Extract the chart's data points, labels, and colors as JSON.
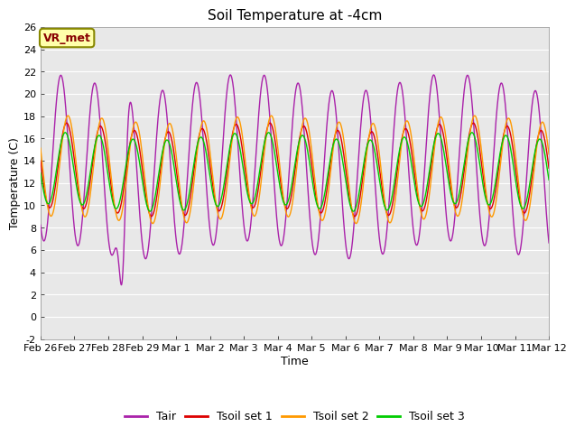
{
  "title": "Soil Temperature at -4cm",
  "xlabel": "Time",
  "ylabel": "Temperature (C)",
  "ylim": [
    -2,
    26
  ],
  "xlim_start": 0,
  "xlim_end": 15.0,
  "xtick_positions": [
    0,
    1,
    2,
    3,
    4,
    5,
    6,
    7,
    8,
    9,
    10,
    11,
    12,
    13,
    14,
    15
  ],
  "xtick_labels": [
    "Feb 26",
    "Feb 27",
    "Feb 28",
    "Feb 29",
    "Mar 1",
    "Mar 2",
    "Mar 3",
    "Mar 4",
    "Mar 5",
    "Mar 6",
    "Mar 7",
    "Mar 8",
    "Mar 9",
    "Mar 10",
    "Mar 11",
    "Mar 12"
  ],
  "ytick_positions": [
    -2,
    0,
    2,
    4,
    6,
    8,
    10,
    12,
    14,
    16,
    18,
    20,
    22,
    24,
    26
  ],
  "colors": {
    "Tair": "#aa22aa",
    "Tsoil1": "#dd0000",
    "Tsoil2": "#ff9900",
    "Tsoil3": "#00cc00"
  },
  "legend_labels": [
    "Tair",
    "Tsoil set 1",
    "Tsoil set 2",
    "Tsoil set 3"
  ],
  "vr_met_label": "VR_met",
  "plot_bg_color": "#e8e8e8",
  "fig_bg_color": "#ffffff",
  "grid_color": "#ffffff",
  "title_fontsize": 11,
  "axis_label_fontsize": 9,
  "tick_fontsize": 8,
  "legend_fontsize": 9
}
